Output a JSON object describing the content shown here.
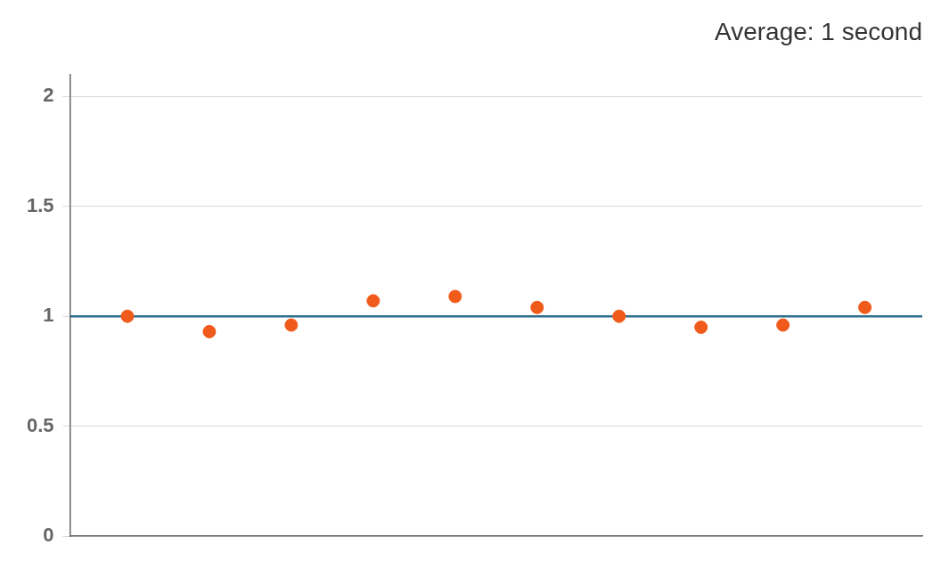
{
  "chart_data": {
    "type": "scatter",
    "title": "Average: 1 second",
    "series": [
      {
        "type": "scatter",
        "color": "#f05a1a",
        "marker": "circle",
        "x": [
          1,
          2,
          3,
          4,
          5,
          6,
          7,
          8,
          9,
          10
        ],
        "values": [
          1.0,
          0.93,
          0.96,
          1.07,
          1.09,
          1.04,
          1.0,
          0.95,
          0.96,
          1.04
        ]
      },
      {
        "type": "line",
        "color": "#2e6e8e",
        "line_style": "solid",
        "x": [
          0.3,
          10.7
        ],
        "values": [
          1.0,
          1.0
        ]
      }
    ],
    "xlim": [
      0.3,
      10.7
    ],
    "ylim": [
      0,
      2.1
    ],
    "yticks": [
      0,
      0.5,
      1.0,
      1.5,
      2.0
    ],
    "grid": "y",
    "tick_labels": "y",
    "legend": false
  }
}
